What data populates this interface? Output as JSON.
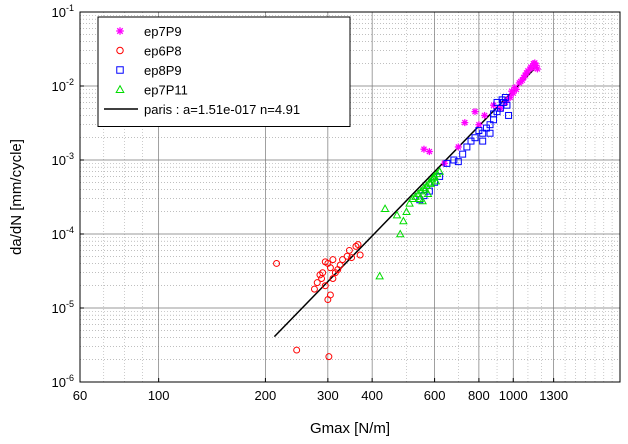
{
  "chart_data": {
    "type": "scatter",
    "xlabel": "Gmax [N/m]",
    "ylabel": "da/dN [mm/cycle]",
    "x_scale": "log",
    "y_scale": "log",
    "xlim": [
      60,
      2000
    ],
    "ylim": [
      1e-06,
      0.1
    ],
    "grid": true,
    "legend_position": "top-left",
    "x_ticks": [
      {
        "value": 60,
        "label": "60"
      },
      {
        "value": 100,
        "label": "100"
      },
      {
        "value": 200,
        "label": "200"
      },
      {
        "value": 300,
        "label": "300"
      },
      {
        "value": 400,
        "label": "400"
      },
      {
        "value": 600,
        "label": "600"
      },
      {
        "value": 800,
        "label": "800"
      },
      {
        "value": 1000,
        "label": "1000"
      },
      {
        "value": 1300,
        "label": "1300"
      }
    ],
    "y_ticks": [
      {
        "value": 1e-06,
        "base": "10",
        "exp": "-6"
      },
      {
        "value": 1e-05,
        "base": "10",
        "exp": "-5"
      },
      {
        "value": 0.0001,
        "base": "10",
        "exp": "-4"
      },
      {
        "value": 0.001,
        "base": "10",
        "exp": "-3"
      },
      {
        "value": 0.01,
        "base": "10",
        "exp": "-2"
      },
      {
        "value": 0.1,
        "base": "10",
        "exp": "-1"
      }
    ],
    "series": [
      {
        "name": "ep7P9",
        "marker": "star",
        "color": "#ff00ff",
        "points": [
          [
            560,
            0.0014
          ],
          [
            580,
            0.0013
          ],
          [
            640,
            0.0009
          ],
          [
            700,
            0.0015
          ],
          [
            730,
            0.0032
          ],
          [
            780,
            0.0045
          ],
          [
            800,
            0.003
          ],
          [
            830,
            0.004
          ],
          [
            880,
            0.0055
          ],
          [
            920,
            0.005
          ],
          [
            950,
            0.006
          ],
          [
            980,
            0.007
          ],
          [
            1000,
            0.008
          ],
          [
            1020,
            0.009
          ],
          [
            1040,
            0.011
          ],
          [
            1060,
            0.012
          ],
          [
            1080,
            0.014
          ],
          [
            1100,
            0.016
          ],
          [
            1120,
            0.018
          ],
          [
            1140,
            0.02
          ],
          [
            1160,
            0.019
          ],
          [
            1170,
            0.017
          ],
          [
            1090,
            0.015
          ],
          [
            1010,
            0.0095
          ],
          [
            990,
            0.0085
          ],
          [
            1130,
            0.0175
          ],
          [
            1150,
            0.0205
          ],
          [
            1070,
            0.013
          ],
          [
            1050,
            0.0115
          ],
          [
            960,
            0.0065
          ]
        ]
      },
      {
        "name": "ep6P8",
        "marker": "circle",
        "color": "#ff0000",
        "points": [
          [
            215,
            4e-05
          ],
          [
            245,
            2.7e-06
          ],
          [
            275,
            1.8e-05
          ],
          [
            280,
            2.2e-05
          ],
          [
            285,
            2.8e-05
          ],
          [
            290,
            3e-05
          ],
          [
            295,
            2e-05
          ],
          [
            300,
            4e-05
          ],
          [
            300,
            1.3e-05
          ],
          [
            302,
            2.2e-06
          ],
          [
            305,
            3.5e-05
          ],
          [
            310,
            4.5e-05
          ],
          [
            310,
            2.5e-05
          ],
          [
            315,
            3e-05
          ],
          [
            320,
            3.3e-05
          ],
          [
            325,
            3.8e-05
          ],
          [
            330,
            4.5e-05
          ],
          [
            340,
            5e-05
          ],
          [
            345,
            6e-05
          ],
          [
            350,
            4.8e-05
          ],
          [
            360,
            6.8e-05
          ],
          [
            365,
            7.2e-05
          ],
          [
            370,
            5.2e-05
          ],
          [
            305,
            1.5e-05
          ],
          [
            295,
            4.2e-05
          ],
          [
            288,
            2.5e-05
          ]
        ]
      },
      {
        "name": "ep8P9",
        "marker": "square",
        "color": "#0000ff",
        "points": [
          [
            560,
            0.00033
          ],
          [
            580,
            0.00038
          ],
          [
            600,
            0.0005
          ],
          [
            620,
            0.0006
          ],
          [
            650,
            0.0009
          ],
          [
            680,
            0.001
          ],
          [
            700,
            0.00095
          ],
          [
            720,
            0.0012
          ],
          [
            740,
            0.0015
          ],
          [
            760,
            0.0018
          ],
          [
            780,
            0.002
          ],
          [
            800,
            0.0025
          ],
          [
            820,
            0.0023
          ],
          [
            840,
            0.0027
          ],
          [
            860,
            0.003
          ],
          [
            880,
            0.0035
          ],
          [
            900,
            0.0045
          ],
          [
            920,
            0.005
          ],
          [
            940,
            0.006
          ],
          [
            950,
            0.007
          ],
          [
            960,
            0.0055
          ],
          [
            970,
            0.004
          ],
          [
            880,
            0.0042
          ],
          [
            860,
            0.0023
          ],
          [
            820,
            0.0018
          ],
          [
            900,
            0.006
          ],
          [
            930,
            0.0065
          ],
          [
            545,
            0.00029
          ]
        ]
      },
      {
        "name": "ep7P11",
        "marker": "triangle",
        "color": "#00dd00",
        "points": [
          [
            420,
            2.7e-05
          ],
          [
            470,
            0.00018
          ],
          [
            480,
            0.0001
          ],
          [
            490,
            0.00015
          ],
          [
            500,
            0.0002
          ],
          [
            510,
            0.00026
          ],
          [
            520,
            0.0003
          ],
          [
            530,
            0.00032
          ],
          [
            540,
            0.00035
          ],
          [
            550,
            0.00038
          ],
          [
            560,
            0.00042
          ],
          [
            570,
            0.00045
          ],
          [
            580,
            0.0005
          ],
          [
            590,
            0.00055
          ],
          [
            600,
            0.0006
          ],
          [
            610,
            0.00065
          ],
          [
            620,
            0.0007
          ],
          [
            545,
            0.0003
          ],
          [
            565,
            0.0004
          ],
          [
            575,
            0.00035
          ],
          [
            585,
            0.00048
          ],
          [
            555,
            0.00028
          ],
          [
            595,
            0.00058
          ],
          [
            605,
            0.00052
          ],
          [
            435,
            0.00022
          ]
        ]
      },
      {
        "name": "paris : a=1.51e-017 n=4.91",
        "marker": "line",
        "color": "#000000",
        "line": [
          [
            212,
            4.1e-06
          ],
          [
            1170,
            0.0188
          ]
        ]
      }
    ]
  }
}
